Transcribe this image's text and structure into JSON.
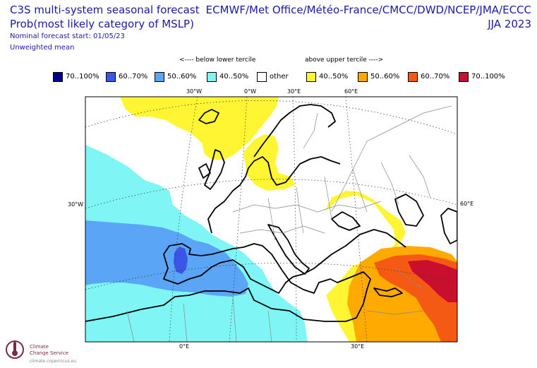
{
  "header": {
    "title": "C3S multi-system seasonal forecast",
    "subtitle": "Prob(most likely category of MSLP)",
    "start": "Nominal forecast start: 01/05/23",
    "weighting": "Unweighted mean",
    "centres": "ECMWF/Met Office/Météo-France/CMCC/DWD/NCEP/JMA/ECCC",
    "season": "JJA 2023"
  },
  "tercile_labels": {
    "below": "<---- below lower tercile",
    "above": "above upper tercile ---->"
  },
  "legend": [
    {
      "label": "70..100%",
      "color": "#00008b"
    },
    {
      "label": "60..70%",
      "color": "#3b55e6"
    },
    {
      "label": "50..60%",
      "color": "#5aa5f5"
    },
    {
      "label": "40..50%",
      "color": "#7ff5f5"
    },
    {
      "label": "other",
      "color": "#ffffff"
    },
    {
      "label": "40..50%",
      "color": "#fff533"
    },
    {
      "label": "50..60%",
      "color": "#ffaa00"
    },
    {
      "label": "60..70%",
      "color": "#f55a14"
    },
    {
      "label": "70..100%",
      "color": "#c8102e"
    }
  ],
  "map": {
    "region": "Europe",
    "top_lon_labels": [
      "30°W",
      "0°W",
      "30°E",
      "60°E"
    ],
    "bottom_lon_labels": [
      "0°E",
      "30°E"
    ],
    "left_lat_label": "30°W",
    "right_lat_label": "60°E"
  },
  "logo": {
    "name": "Climate\nChange Service",
    "url": "climate.copernicus.eu",
    "icon": "c3s-thermometer-icon"
  }
}
